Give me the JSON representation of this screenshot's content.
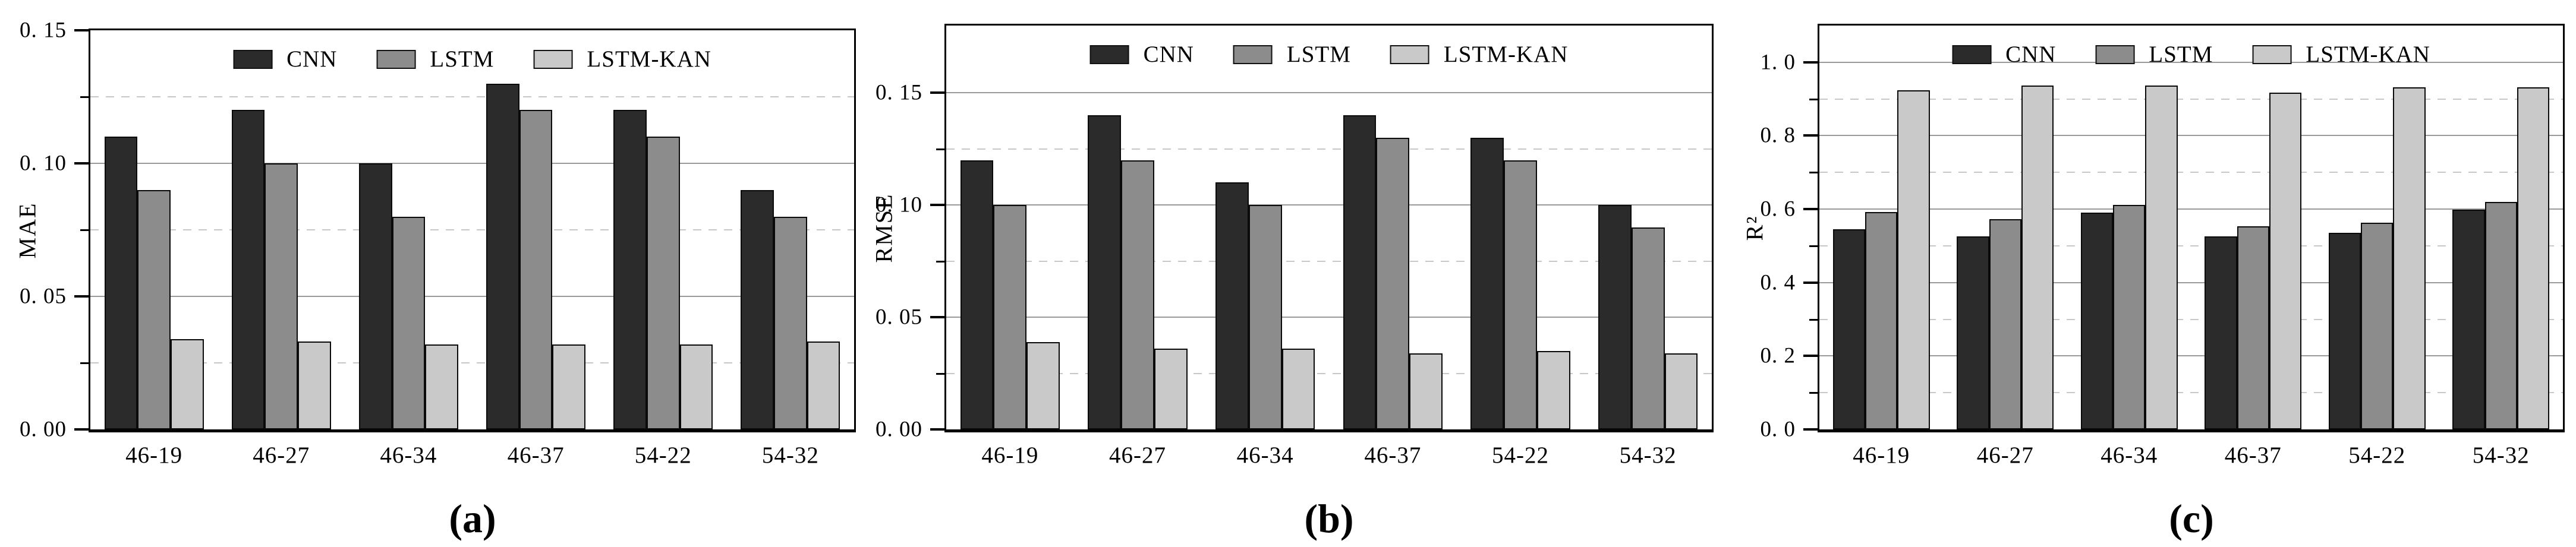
{
  "figure": {
    "description": "Three grouped bar chart panels comparing model error metrics",
    "panel_letters": [
      "(a)",
      "(b)",
      "(c)"
    ]
  },
  "chart_data": [
    {
      "type": "bar",
      "panel_label": "(a)",
      "title": "",
      "xlabel": "",
      "ylabel": "MAE",
      "ylim": [
        0,
        0.15
      ],
      "grid": "horizontal: solid major lines, dashed minor lines",
      "legend_position": "top-center-inside",
      "y_major_ticks": [
        {
          "value": 0.0,
          "label": "0. 00"
        },
        {
          "value": 0.05,
          "label": "0. 05"
        },
        {
          "value": 0.1,
          "label": "0. 10"
        },
        {
          "value": 0.15,
          "label": "0. 15"
        }
      ],
      "y_minor_ticks": [
        0.025,
        0.075,
        0.125
      ],
      "categories": [
        "46-19",
        "46-27",
        "46-34",
        "46-37",
        "54-22",
        "54-32"
      ],
      "series": [
        {
          "name": "CNN",
          "color": "#2b2b2b",
          "values": [
            0.11,
            0.12,
            0.1,
            0.13,
            0.12,
            0.09
          ]
        },
        {
          "name": "LSTM",
          "color": "#8c8c8c",
          "values": [
            0.09,
            0.1,
            0.08,
            0.12,
            0.11,
            0.08
          ]
        },
        {
          "name": "LSTM-KAN",
          "color": "#c9c9c9",
          "values": [
            0.034,
            0.033,
            0.032,
            0.032,
            0.032,
            0.033
          ]
        }
      ]
    },
    {
      "type": "bar",
      "panel_label": "(b)",
      "title": "",
      "xlabel": "",
      "ylabel": "RMSE",
      "ylim": [
        0,
        0.18
      ],
      "grid": "horizontal: solid major lines, dashed minor lines",
      "legend_position": "top-center-inside",
      "y_major_ticks": [
        {
          "value": 0.0,
          "label": "0. 00"
        },
        {
          "value": 0.05,
          "label": "0. 05"
        },
        {
          "value": 0.1,
          "label": "0. 10"
        },
        {
          "value": 0.15,
          "label": "0. 15"
        }
      ],
      "y_minor_ticks": [
        0.025,
        0.075,
        0.125
      ],
      "categories": [
        "46-19",
        "46-27",
        "46-34",
        "46-37",
        "54-22",
        "54-32"
      ],
      "series": [
        {
          "name": "CNN",
          "color": "#2b2b2b",
          "values": [
            0.12,
            0.14,
            0.11,
            0.14,
            0.13,
            0.1
          ]
        },
        {
          "name": "LSTM",
          "color": "#8c8c8c",
          "values": [
            0.1,
            0.12,
            0.1,
            0.13,
            0.12,
            0.09
          ]
        },
        {
          "name": "LSTM-KAN",
          "color": "#c9c9c9",
          "values": [
            0.039,
            0.036,
            0.036,
            0.034,
            0.035,
            0.034
          ]
        }
      ]
    },
    {
      "type": "bar",
      "panel_label": "(c)",
      "title": "",
      "xlabel": "",
      "ylabel": "R²",
      "ylim": [
        0,
        1.1
      ],
      "grid": "horizontal: solid major lines, dashed minor lines",
      "legend_position": "top-center-inside",
      "y_major_ticks": [
        {
          "value": 0.0,
          "label": "0. 0"
        },
        {
          "value": 0.2,
          "label": "0. 2"
        },
        {
          "value": 0.4,
          "label": "0. 4"
        },
        {
          "value": 0.6,
          "label": "0. 6"
        },
        {
          "value": 0.8,
          "label": "0. 8"
        },
        {
          "value": 1.0,
          "label": "1. 0"
        }
      ],
      "y_minor_ticks": [
        0.1,
        0.3,
        0.5,
        0.7,
        0.9
      ],
      "categories": [
        "46-19",
        "46-27",
        "46-34",
        "46-37",
        "54-22",
        "54-32"
      ],
      "series": [
        {
          "name": "CNN",
          "color": "#2b2b2b",
          "values": [
            0.545,
            0.525,
            0.59,
            0.525,
            0.535,
            0.598
          ]
        },
        {
          "name": "LSTM",
          "color": "#8c8c8c",
          "values": [
            0.592,
            0.572,
            0.612,
            0.553,
            0.563,
            0.62
          ]
        },
        {
          "name": "LSTM-KAN",
          "color": "#c9c9c9",
          "values": [
            0.923,
            0.937,
            0.937,
            0.918,
            0.932,
            0.932
          ]
        }
      ]
    }
  ]
}
